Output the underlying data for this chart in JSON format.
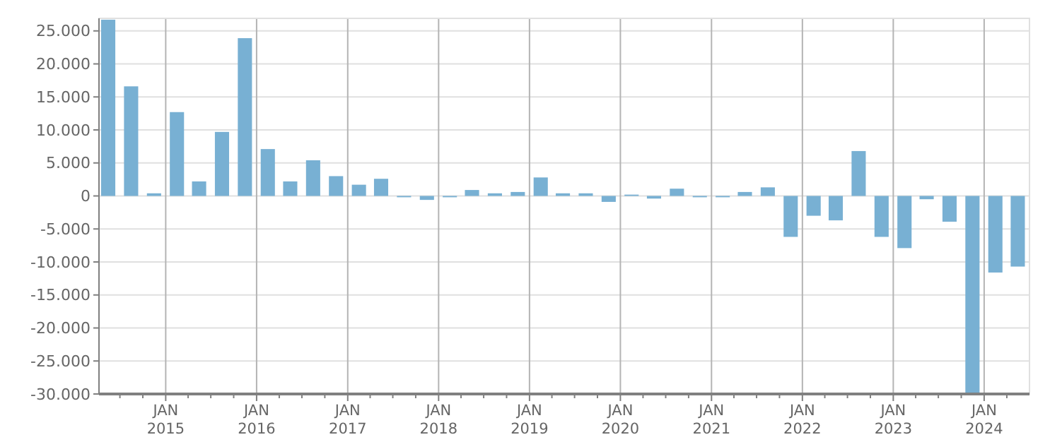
{
  "chart_data": {
    "type": "bar",
    "x": [
      "2014-05-15",
      "2014-08-15",
      "2014-11-15",
      "2015-02-15",
      "2015-05-15",
      "2015-08-15",
      "2015-11-15",
      "2016-02-15",
      "2016-05-15",
      "2016-08-15",
      "2016-11-15",
      "2017-02-15",
      "2017-05-15",
      "2017-08-15",
      "2017-11-15",
      "2018-02-15",
      "2018-05-15",
      "2018-08-15",
      "2018-11-15",
      "2019-02-15",
      "2019-05-15",
      "2019-08-15",
      "2019-11-15",
      "2020-02-15",
      "2020-05-15",
      "2020-08-15",
      "2020-11-15",
      "2021-02-15",
      "2021-05-15",
      "2021-08-15",
      "2021-11-15",
      "2022-02-15",
      "2022-05-15",
      "2022-08-15",
      "2022-11-15",
      "2023-02-15",
      "2023-05-15",
      "2023-08-15",
      "2023-11-15",
      "2024-02-15",
      "2024-05-15"
    ],
    "values": [
      26700,
      16600,
      400,
      12700,
      2200,
      9700,
      23900,
      7100,
      2200,
      5400,
      3000,
      1700,
      2600,
      -200,
      -600,
      -200,
      900,
      400,
      600,
      2800,
      400,
      400,
      -900,
      200,
      -400,
      1100,
      -200,
      -200,
      600,
      1300,
      -6200,
      -3000,
      -3700,
      6800,
      -6200,
      -7900,
      -500,
      -3900,
      -30000,
      -11600,
      -10700
    ],
    "color": "#78b0d3",
    "ylim": [
      -30000,
      26900
    ],
    "yticks": [
      {
        "value": -30000,
        "label": "-30.000"
      },
      {
        "value": -25000,
        "label": "-25.000"
      },
      {
        "value": -20000,
        "label": "-20.000"
      },
      {
        "value": -15000,
        "label": "-15.000"
      },
      {
        "value": -10000,
        "label": "-10.000"
      },
      {
        "value": -5000,
        "label": "-5.000"
      },
      {
        "value": 0,
        "label": "0"
      },
      {
        "value": 5000,
        "label": "5.000"
      },
      {
        "value": 10000,
        "label": "10.000"
      },
      {
        "value": 15000,
        "label": "15.000"
      },
      {
        "value": 20000,
        "label": "20.000"
      },
      {
        "value": 25000,
        "label": "25.000"
      }
    ],
    "xlim": [
      "2014-04-08",
      "2024-07-01"
    ],
    "xticks": [
      {
        "value": "2014-07-01",
        "label": null
      },
      {
        "value": "2014-10-01",
        "label": null
      },
      {
        "value": "2015-01-01",
        "label": "JAN\n2015"
      },
      {
        "value": "2015-04-01",
        "label": null
      },
      {
        "value": "2015-07-01",
        "label": null
      },
      {
        "value": "2015-10-01",
        "label": null
      },
      {
        "value": "2016-01-01",
        "label": "JAN\n2016"
      },
      {
        "value": "2016-04-01",
        "label": null
      },
      {
        "value": "2016-07-01",
        "label": null
      },
      {
        "value": "2016-10-01",
        "label": null
      },
      {
        "value": "2017-01-01",
        "label": "JAN\n2017"
      },
      {
        "value": "2017-04-01",
        "label": null
      },
      {
        "value": "2017-07-01",
        "label": null
      },
      {
        "value": "2017-10-01",
        "label": null
      },
      {
        "value": "2018-01-01",
        "label": "JAN\n2018"
      },
      {
        "value": "2018-04-01",
        "label": null
      },
      {
        "value": "2018-07-01",
        "label": null
      },
      {
        "value": "2018-10-01",
        "label": null
      },
      {
        "value": "2019-01-01",
        "label": "JAN\n2019"
      },
      {
        "value": "2019-04-01",
        "label": null
      },
      {
        "value": "2019-07-01",
        "label": null
      },
      {
        "value": "2019-10-01",
        "label": null
      },
      {
        "value": "2020-01-01",
        "label": "JAN\n2020"
      },
      {
        "value": "2020-04-01",
        "label": null
      },
      {
        "value": "2020-07-01",
        "label": null
      },
      {
        "value": "2020-10-01",
        "label": null
      },
      {
        "value": "2021-01-01",
        "label": "JAN\n2021"
      },
      {
        "value": "2021-04-01",
        "label": null
      },
      {
        "value": "2021-07-01",
        "label": null
      },
      {
        "value": "2021-10-01",
        "label": null
      },
      {
        "value": "2022-01-01",
        "label": "JAN\n2022"
      },
      {
        "value": "2022-04-01",
        "label": null
      },
      {
        "value": "2022-07-01",
        "label": null
      },
      {
        "value": "2022-10-01",
        "label": null
      },
      {
        "value": "2023-01-01",
        "label": "JAN\n2023"
      },
      {
        "value": "2023-04-01",
        "label": null
      },
      {
        "value": "2023-07-01",
        "label": null
      },
      {
        "value": "2023-10-01",
        "label": null
      },
      {
        "value": "2024-01-01",
        "label": "JAN\n2024"
      },
      {
        "value": "2024-04-01",
        "label": null
      }
    ],
    "grid": true
  }
}
